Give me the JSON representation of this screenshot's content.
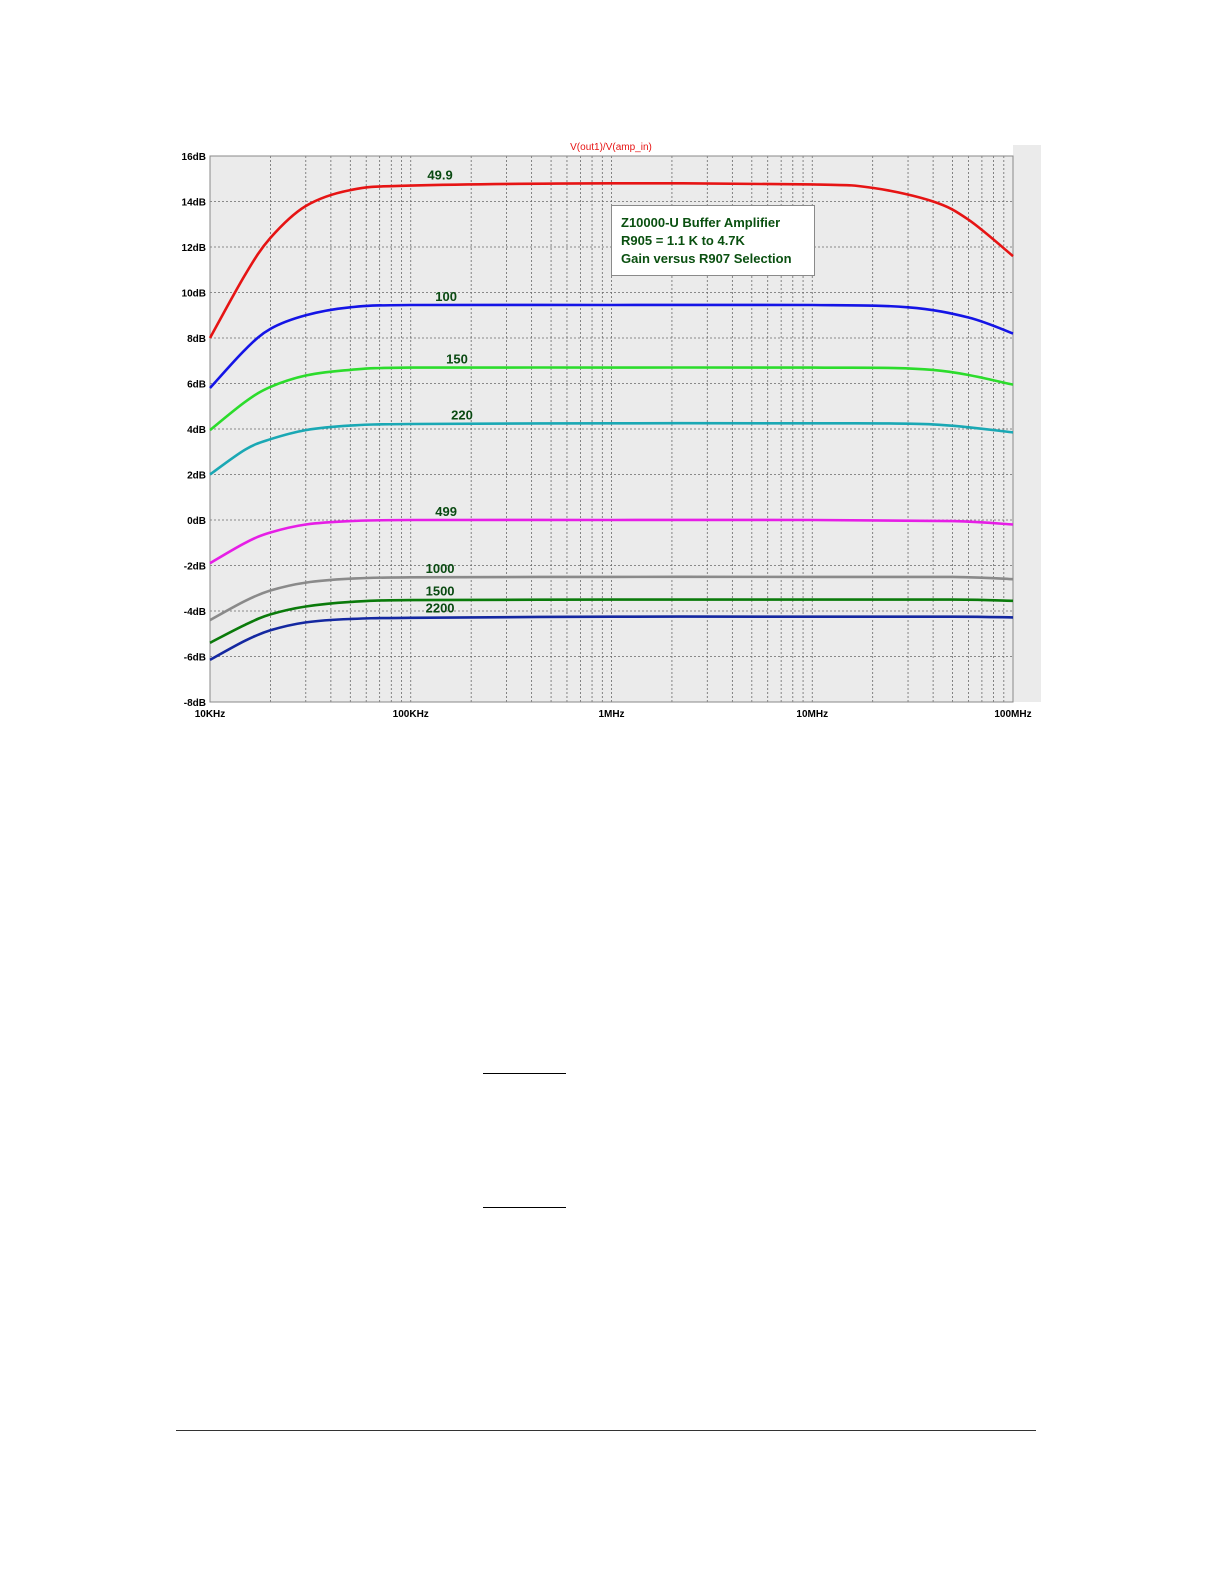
{
  "chart_data": {
    "type": "line",
    "title": "V(out1)/V(amp_in)",
    "xlabel": "",
    "ylabel": "",
    "x_scale": "log",
    "xlim": [
      10000,
      100000000
    ],
    "ylim": [
      -8,
      16
    ],
    "grid": true,
    "x_ticks": [
      {
        "value": 10000,
        "label": "10KHz"
      },
      {
        "value": 100000,
        "label": "100KHz"
      },
      {
        "value": 1000000,
        "label": "1MHz"
      },
      {
        "value": 10000000,
        "label": "10MHz"
      },
      {
        "value": 100000000,
        "label": "100MHz"
      }
    ],
    "y_ticks": [
      {
        "value": 16,
        "label": "16dB"
      },
      {
        "value": 14,
        "label": "14dB"
      },
      {
        "value": 12,
        "label": "12dB"
      },
      {
        "value": 10,
        "label": "10dB"
      },
      {
        "value": 8,
        "label": "8dB"
      },
      {
        "value": 6,
        "label": "6dB"
      },
      {
        "value": 4,
        "label": "4dB"
      },
      {
        "value": 2,
        "label": "2dB"
      },
      {
        "value": 0,
        "label": "0dB"
      },
      {
        "value": -2,
        "label": "-2dB"
      },
      {
        "value": -4,
        "label": "-4dB"
      },
      {
        "value": -6,
        "label": "-6dB"
      },
      {
        "value": -8,
        "label": "-8dB"
      }
    ],
    "annotation": [
      "Z10000-U Buffer Amplifier",
      "R905 = 1.1 K to 4.7K",
      "Gain versus R907 Selection"
    ],
    "series": [
      {
        "name": "49.9",
        "color": "#e61414",
        "x": [
          10000,
          15000,
          20000,
          30000,
          50000,
          100000,
          1000000,
          10000000,
          20000000,
          40000000,
          60000000,
          100000000
        ],
        "y": [
          8.0,
          10.8,
          12.4,
          13.8,
          14.5,
          14.7,
          14.8,
          14.75,
          14.6,
          14.0,
          13.2,
          11.6
        ]
      },
      {
        "name": "100",
        "color": "#1414e6",
        "x": [
          10000,
          15000,
          20000,
          30000,
          50000,
          100000,
          1000000,
          10000000,
          30000000,
          60000000,
          100000000
        ],
        "y": [
          5.8,
          7.5,
          8.4,
          9.0,
          9.35,
          9.45,
          9.45,
          9.45,
          9.35,
          8.9,
          8.2
        ]
      },
      {
        "name": "150",
        "color": "#2cdc2c",
        "x": [
          10000,
          15000,
          20000,
          30000,
          50000,
          100000,
          1000000,
          10000000,
          40000000,
          100000000
        ],
        "y": [
          3.95,
          5.2,
          5.85,
          6.35,
          6.6,
          6.7,
          6.7,
          6.7,
          6.6,
          5.95
        ]
      },
      {
        "name": "220",
        "color": "#1aa8b4",
        "x": [
          10000,
          15000,
          20000,
          30000,
          50000,
          100000,
          1000000,
          10000000,
          40000000,
          100000000
        ],
        "y": [
          2.0,
          3.1,
          3.55,
          3.95,
          4.15,
          4.22,
          4.25,
          4.25,
          4.2,
          3.85
        ]
      },
      {
        "name": "499",
        "color": "#e61ee6",
        "x": [
          10000,
          15000,
          20000,
          30000,
          50000,
          100000,
          1000000,
          10000000,
          50000000,
          100000000
        ],
        "y": [
          -1.9,
          -1.0,
          -0.55,
          -0.2,
          -0.05,
          0.0,
          0.0,
          0.0,
          -0.05,
          -0.2
        ]
      },
      {
        "name": "1000",
        "color": "#8a8a8a",
        "x": [
          10000,
          15000,
          20000,
          30000,
          50000,
          100000,
          1000000,
          10000000,
          50000000,
          100000000
        ],
        "y": [
          -4.4,
          -3.55,
          -3.1,
          -2.75,
          -2.58,
          -2.52,
          -2.5,
          -2.5,
          -2.5,
          -2.6
        ]
      },
      {
        "name": "1500",
        "color": "#0a7a0a",
        "x": [
          10000,
          15000,
          20000,
          30000,
          50000,
          100000,
          1000000,
          10000000,
          50000000,
          100000000
        ],
        "y": [
          -5.4,
          -4.6,
          -4.15,
          -3.8,
          -3.6,
          -3.52,
          -3.5,
          -3.5,
          -3.5,
          -3.55
        ]
      },
      {
        "name": "2200",
        "color": "#1428a0",
        "x": [
          10000,
          15000,
          20000,
          30000,
          50000,
          100000,
          1000000,
          10000000,
          50000000,
          100000000
        ],
        "y": [
          -6.15,
          -5.3,
          -4.85,
          -4.5,
          -4.35,
          -4.3,
          -4.25,
          -4.25,
          -4.25,
          -4.28
        ]
      }
    ],
    "curve_labels": [
      {
        "text": "49.9",
        "x": 140000,
        "y": 14.8
      },
      {
        "text": "100",
        "x": 150000,
        "y": 9.45
      },
      {
        "text": "150",
        "x": 170000,
        "y": 6.7
      },
      {
        "text": "220",
        "x": 180000,
        "y": 4.25
      },
      {
        "text": "499",
        "x": 150000,
        "y": 0.0
      },
      {
        "text": "1000",
        "x": 140000,
        "y": -2.5
      },
      {
        "text": "1500",
        "x": 140000,
        "y": -3.5
      },
      {
        "text": "2200",
        "x": 140000,
        "y": -4.25
      }
    ]
  }
}
